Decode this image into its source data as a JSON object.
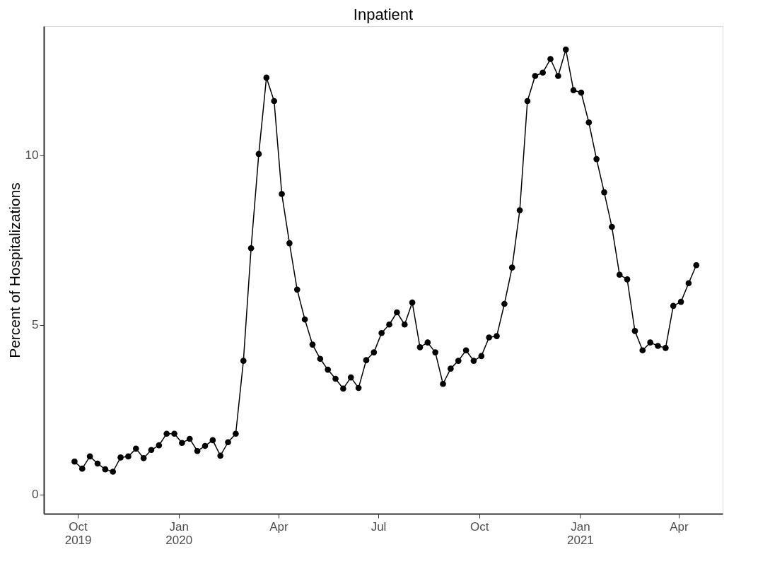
{
  "chart_data": {
    "type": "line",
    "title": "Inpatient",
    "ylabel": "Percent of Hospitalizations",
    "x": [
      "2019-09-28",
      "2019-10-05",
      "2019-10-12",
      "2019-10-19",
      "2019-10-26",
      "2019-11-02",
      "2019-11-09",
      "2019-11-16",
      "2019-11-23",
      "2019-11-30",
      "2019-12-07",
      "2019-12-14",
      "2019-12-21",
      "2019-12-28",
      "2020-01-04",
      "2020-01-11",
      "2020-01-18",
      "2020-01-25",
      "2020-02-01",
      "2020-02-08",
      "2020-02-15",
      "2020-02-22",
      "2020-02-29",
      "2020-03-07",
      "2020-03-14",
      "2020-03-21",
      "2020-03-28",
      "2020-04-04",
      "2020-04-11",
      "2020-04-18",
      "2020-04-25",
      "2020-05-02",
      "2020-05-09",
      "2020-05-16",
      "2020-05-23",
      "2020-05-30",
      "2020-06-06",
      "2020-06-13",
      "2020-06-20",
      "2020-06-27",
      "2020-07-04",
      "2020-07-11",
      "2020-07-18",
      "2020-07-25",
      "2020-08-01",
      "2020-08-08",
      "2020-08-15",
      "2020-08-22",
      "2020-08-29",
      "2020-09-05",
      "2020-09-12",
      "2020-09-19",
      "2020-09-26",
      "2020-10-03",
      "2020-10-10",
      "2020-10-17",
      "2020-10-24",
      "2020-10-31",
      "2020-11-07",
      "2020-11-14",
      "2020-11-21",
      "2020-11-28",
      "2020-12-05",
      "2020-12-12",
      "2020-12-19",
      "2020-12-26",
      "2021-01-02",
      "2021-01-09",
      "2021-01-16",
      "2021-01-23",
      "2021-01-30",
      "2021-02-06",
      "2021-02-13",
      "2021-02-20",
      "2021-02-27",
      "2021-03-06",
      "2021-03-13",
      "2021-03-20",
      "2021-03-27",
      "2021-04-03",
      "2021-04-10",
      "2021-04-17"
    ],
    "series": [
      {
        "color": "#000000",
        "values": [
          0.97,
          0.76,
          1.12,
          0.91,
          0.74,
          0.67,
          1.09,
          1.12,
          1.35,
          1.07,
          1.31,
          1.45,
          1.79,
          1.79,
          1.52,
          1.64,
          1.28,
          1.43,
          1.6,
          1.14,
          1.54,
          1.79,
          3.94,
          7.26,
          10.04,
          12.29,
          11.6,
          8.86,
          7.41,
          6.04,
          5.16,
          4.42,
          4.0,
          3.68,
          3.41,
          3.12,
          3.45,
          3.14,
          3.96,
          4.19,
          4.76,
          5.01,
          5.37,
          5.01,
          5.66,
          4.34,
          4.48,
          4.19,
          3.26,
          3.71,
          3.94,
          4.25,
          3.94,
          4.08,
          4.63,
          4.67,
          5.62,
          6.69,
          8.38,
          11.6,
          12.34,
          12.44,
          12.84,
          12.34,
          13.12,
          11.92,
          11.85,
          10.97,
          9.89,
          8.91,
          7.89,
          6.48,
          6.34,
          4.82,
          4.25,
          4.48,
          4.38,
          4.32,
          5.56,
          5.68,
          6.23,
          6.76
        ]
      }
    ],
    "xlim": [
      "2019-08-31",
      "2021-05-11"
    ],
    "xticks": [
      {
        "value": "2019-10-01",
        "label": "Oct\n2019"
      },
      {
        "value": "2020-01-01",
        "label": "Jan\n2020"
      },
      {
        "value": "2020-04-01",
        "label": "Apr"
      },
      {
        "value": "2020-07-01",
        "label": "Jul"
      },
      {
        "value": "2020-10-01",
        "label": "Oct"
      },
      {
        "value": "2021-01-01",
        "label": "Jan\n2021"
      },
      {
        "value": "2021-04-01",
        "label": "Apr"
      }
    ],
    "ylim": [
      -0.57,
      13.81
    ],
    "yticks": [
      0,
      5,
      10
    ],
    "grid": false,
    "legend": false,
    "marker": "circle",
    "line_style": "solid"
  }
}
